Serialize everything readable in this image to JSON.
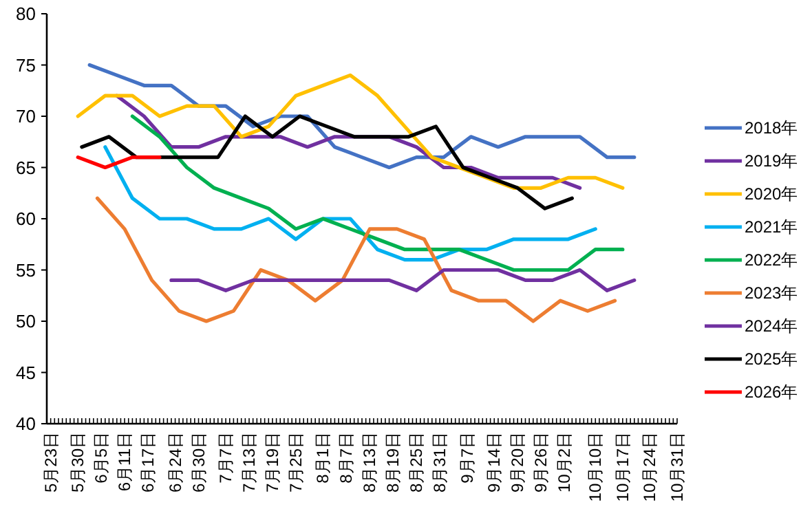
{
  "chart_data": {
    "type": "line",
    "xlim": [
      "--05-22",
      "--10-31"
    ],
    "ylim": [
      40,
      80
    ],
    "yticks": [
      40,
      45,
      50,
      55,
      60,
      65,
      70,
      75,
      80
    ],
    "xticks": [
      {
        "value": "--05-23",
        "label": "5月23日"
      },
      {
        "value": "--05-30",
        "label": "5月30日"
      },
      {
        "value": "--06-05",
        "label": "6月5日"
      },
      {
        "value": "--06-11",
        "label": "6月11日"
      },
      {
        "value": "--06-17",
        "label": "6月17日"
      },
      {
        "value": "--06-24",
        "label": "6月24日"
      },
      {
        "value": "--06-30",
        "label": "6月30日"
      },
      {
        "value": "--07-07",
        "label": "7月7日"
      },
      {
        "value": "--07-13",
        "label": "7月13日"
      },
      {
        "value": "--07-19",
        "label": "7月19日"
      },
      {
        "value": "--07-25",
        "label": "7月25日"
      },
      {
        "value": "--08-01",
        "label": "8月1日"
      },
      {
        "value": "--08-07",
        "label": "8月7日"
      },
      {
        "value": "--08-13",
        "label": "8月13日"
      },
      {
        "value": "--08-19",
        "label": "8月19日"
      },
      {
        "value": "--08-25",
        "label": "8月25日"
      },
      {
        "value": "--08-31",
        "label": "8月31日"
      },
      {
        "value": "--09-07",
        "label": "9月7日"
      },
      {
        "value": "--09-14",
        "label": "9月14日"
      },
      {
        "value": "--09-20",
        "label": "9月20日"
      },
      {
        "value": "--09-26",
        "label": "9月26日"
      },
      {
        "value": "--10-02",
        "label": "10月2日"
      },
      {
        "value": "--10-10",
        "label": "10月10日"
      },
      {
        "value": "--10-17",
        "label": "10月17日"
      },
      {
        "value": "--10-24",
        "label": "10月24日"
      },
      {
        "value": "--10-31",
        "label": "10月31日"
      }
    ],
    "legend": "right",
    "marker": "none",
    "line_style": "solid",
    "series": [
      {
        "name": "2018年",
        "color": "#4472c4",
        "x": [
          "--06-02",
          "--06-09",
          "--06-16",
          "--06-23",
          "--06-30",
          "--07-07",
          "--07-14",
          "--07-21",
          "--07-28",
          "--08-04",
          "--08-11",
          "--08-18",
          "--08-25",
          "--09-01",
          "--09-08",
          "--09-15",
          "--09-22",
          "--09-29",
          "--10-06",
          "--10-13",
          "--10-20"
        ],
        "values": [
          75,
          74,
          73,
          73,
          71,
          71,
          69,
          70,
          70,
          67,
          66,
          65,
          66,
          66,
          68,
          67,
          68,
          68,
          68,
          66,
          66
        ]
      },
      {
        "name": "2019年",
        "color": "#7030a0",
        "x": [
          "--06-09",
          "--06-16",
          "--06-23",
          "--06-30",
          "--07-07",
          "--07-14",
          "--07-21",
          "--07-28",
          "--08-04",
          "--08-11",
          "--08-18",
          "--08-25",
          "--09-01",
          "--09-08",
          "--09-15",
          "--09-22",
          "--09-29",
          "--10-06"
        ],
        "values": [
          72,
          70,
          67,
          67,
          68,
          68,
          68,
          67,
          68,
          68,
          68,
          67,
          65,
          65,
          64,
          64,
          64,
          63
        ]
      },
      {
        "name": "2020年",
        "color": "#ffc000",
        "x": [
          "--05-30",
          "--06-06",
          "--06-13",
          "--06-20",
          "--06-27",
          "--07-04",
          "--07-11",
          "--07-18",
          "--07-25",
          "--08-01",
          "--08-08",
          "--08-15",
          "--08-22",
          "--08-29",
          "--09-05",
          "--09-12",
          "--09-19",
          "--09-26",
          "--10-03",
          "--10-10",
          "--10-17"
        ],
        "values": [
          70,
          72,
          72,
          70,
          71,
          71,
          68,
          69,
          72,
          73,
          74,
          72,
          69,
          66,
          65,
          64,
          63,
          63,
          64,
          64,
          63
        ]
      },
      {
        "name": "2021年",
        "color": "#00b0f0",
        "x": [
          "--06-06",
          "--06-13",
          "--06-20",
          "--06-27",
          "--07-04",
          "--07-11",
          "--07-18",
          "--07-25",
          "--08-01",
          "--08-08",
          "--08-15",
          "--08-22",
          "--08-29",
          "--09-05",
          "--09-12",
          "--09-19",
          "--09-26",
          "--10-03",
          "--10-10"
        ],
        "values": [
          67,
          62,
          60,
          60,
          59,
          59,
          60,
          58,
          60,
          60,
          57,
          56,
          56,
          57,
          57,
          58,
          58,
          58,
          59
        ]
      },
      {
        "name": "2022年",
        "color": "#00b050",
        "x": [
          "--06-13",
          "--06-20",
          "--06-27",
          "--07-04",
          "--07-11",
          "--07-18",
          "--07-25",
          "--08-01",
          "--08-08",
          "--08-15",
          "--08-22",
          "--08-29",
          "--09-05",
          "--09-12",
          "--09-19",
          "--09-26",
          "--10-03",
          "--10-10",
          "--10-17"
        ],
        "values": [
          70,
          68,
          65,
          63,
          62,
          61,
          59,
          60,
          59,
          58,
          57,
          57,
          57,
          56,
          55,
          55,
          55,
          57,
          57
        ]
      },
      {
        "name": "2023年",
        "color": "#ed7d31",
        "x": [
          "--06-04",
          "--06-11",
          "--06-18",
          "--06-25",
          "--07-02",
          "--07-09",
          "--07-16",
          "--07-23",
          "--07-30",
          "--08-06",
          "--08-13",
          "--08-20",
          "--08-27",
          "--09-03",
          "--09-10",
          "--09-17",
          "--09-24",
          "--10-01",
          "--10-08",
          "--10-15"
        ],
        "values": [
          62,
          59,
          54,
          51,
          50,
          51,
          55,
          54,
          52,
          54,
          59,
          59,
          58,
          53,
          52,
          52,
          50,
          52,
          51,
          52
        ]
      },
      {
        "name": "2024年",
        "color": "#7030a0",
        "x": [
          "--06-23",
          "--06-30",
          "--07-07",
          "--07-14",
          "--07-21",
          "--07-28",
          "--08-04",
          "--08-11",
          "--08-18",
          "--08-25",
          "--09-01",
          "--09-08",
          "--09-15",
          "--09-22",
          "--09-29",
          "--10-06",
          "--10-13",
          "--10-20"
        ],
        "values": [
          54,
          54,
          53,
          54,
          54,
          54,
          54,
          54,
          54,
          53,
          55,
          55,
          55,
          54,
          54,
          55,
          53,
          54
        ]
      },
      {
        "name": "2025年",
        "color": "#000000",
        "x": [
          "--05-31",
          "--06-07",
          "--06-14",
          "--06-21",
          "--06-28",
          "--07-05",
          "--07-12",
          "--07-19",
          "--07-26",
          "--08-02",
          "--08-09",
          "--08-16",
          "--08-23",
          "--08-30",
          "--09-06",
          "--09-13",
          "--09-20",
          "--09-27",
          "--10-04"
        ],
        "values": [
          67,
          68,
          66,
          66,
          66,
          66,
          70,
          68,
          70,
          69,
          68,
          68,
          68,
          69,
          65,
          64,
          63,
          61,
          62
        ]
      },
      {
        "name": "2026年",
        "color": "#ff0000",
        "x": [
          "--05-30",
          "--06-06",
          "--06-13",
          "--06-20"
        ],
        "values": [
          66,
          65,
          66,
          66
        ]
      }
    ]
  }
}
